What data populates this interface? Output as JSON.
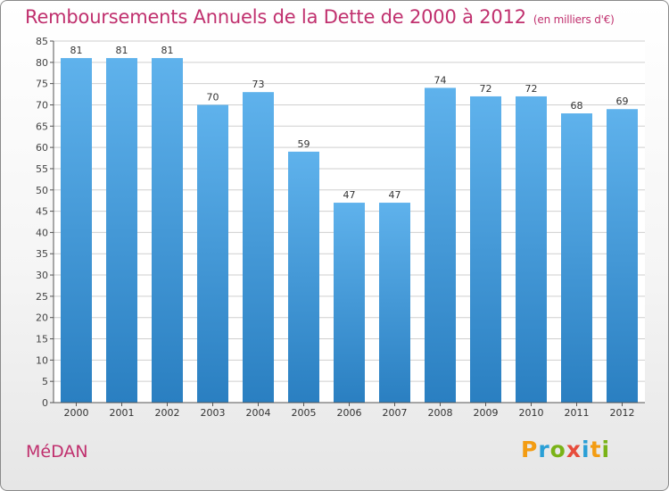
{
  "title": "Remboursements Annuels de la Dette de 2000 à 2012",
  "subtitle": "(en milliers d'€)",
  "commune": "MéDAN",
  "logo_letters": [
    "P",
    "r",
    "o",
    "x",
    "i",
    "t",
    "i"
  ],
  "colors": {
    "bar": "#3b97dc",
    "bar_light": "#5fb2ec",
    "bar_dark": "#2a7fc1",
    "title": "#c0306e",
    "grid": "#cfcfcf"
  },
  "chart_data": {
    "type": "bar",
    "title": "Remboursements Annuels de la Dette de 2000 à 2012",
    "categories": [
      "2000",
      "2001",
      "2002",
      "2003",
      "2004",
      "2005",
      "2006",
      "2007",
      "2008",
      "2009",
      "2010",
      "2011",
      "2012"
    ],
    "values": [
      81,
      81,
      81,
      70,
      73,
      59,
      47,
      47,
      74,
      72,
      72,
      68,
      69
    ],
    "data_labels": [
      "81",
      "81",
      "81",
      "70",
      "73",
      "59",
      "47",
      "47",
      "74",
      "72",
      "72",
      "68",
      "69"
    ],
    "y_ticks": [
      "0",
      "5",
      "10",
      "15",
      "20",
      "25",
      "30",
      "35",
      "40",
      "45",
      "50",
      "55",
      "60",
      "65",
      "70",
      "75",
      "80",
      "85"
    ],
    "ylim": [
      0,
      85
    ],
    "xlabel": "",
    "ylabel": "",
    "grid": true
  }
}
